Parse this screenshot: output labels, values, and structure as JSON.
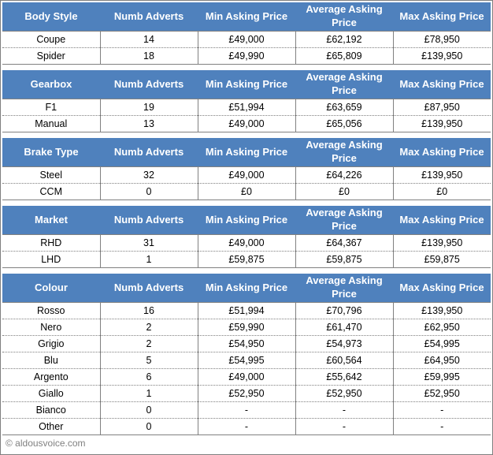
{
  "columns": [
    "Numb Adverts",
    "Min Asking Price",
    "Average Asking Price",
    "Max Asking Price"
  ],
  "colors": {
    "header_background": "#4f81bd",
    "header_text": "#ffffff",
    "border_gray": "#808080",
    "footer_text": "#808080"
  },
  "footer": {
    "text": "© aldousvoice.com"
  },
  "tables": [
    {
      "headers": [
        "Body Style",
        "Numb Adverts",
        "Min Asking Price",
        "Average Asking Price",
        "Max Asking Price"
      ],
      "rows": [
        [
          "Coupe",
          "14",
          "£49,000",
          "£62,192",
          "£78,950"
        ],
        [
          "Spider",
          "18",
          "£49,990",
          "£65,809",
          "£139,950"
        ]
      ]
    },
    {
      "headers": [
        "Gearbox",
        "Numb Adverts",
        "Min Asking Price",
        "Average Asking Price",
        "Max Asking Price"
      ],
      "rows": [
        [
          "F1",
          "19",
          "£51,994",
          "£63,659",
          "£87,950"
        ],
        [
          "Manual",
          "13",
          "£49,000",
          "£65,056",
          "£139,950"
        ]
      ]
    },
    {
      "headers": [
        "Brake Type",
        "Numb Adverts",
        "Min Asking Price",
        "Average Asking Price",
        "Max Asking Price"
      ],
      "rows": [
        [
          "Steel",
          "32",
          "£49,000",
          "£64,226",
          "£139,950"
        ],
        [
          "CCM",
          "0",
          "£0",
          "£0",
          "£0"
        ]
      ]
    },
    {
      "headers": [
        "Market",
        "Numb Adverts",
        "Min Asking Price",
        "Average Asking Price",
        "Max Asking Price"
      ],
      "rows": [
        [
          "RHD",
          "31",
          "£49,000",
          "£64,367",
          "£139,950"
        ],
        [
          "LHD",
          "1",
          "£59,875",
          "£59,875",
          "£59,875"
        ]
      ]
    },
    {
      "headers": [
        "Colour",
        "Numb Adverts",
        "Min Asking Price",
        "Average Asking Price",
        "Max Asking Price"
      ],
      "rows": [
        [
          "Rosso",
          "16",
          "£51,994",
          "£70,796",
          "£139,950"
        ],
        [
          "Nero",
          "2",
          "£59,990",
          "£61,470",
          "£62,950"
        ],
        [
          "Grigio",
          "2",
          "£54,950",
          "£54,973",
          "£54,995"
        ],
        [
          "Blu",
          "5",
          "£54,995",
          "£60,564",
          "£64,950"
        ],
        [
          "Argento",
          "6",
          "£49,000",
          "£55,642",
          "£59,995"
        ],
        [
          "Giallo",
          "1",
          "£52,950",
          "£52,950",
          "£52,950"
        ],
        [
          "Bianco",
          "0",
          "-",
          "-",
          "-"
        ],
        [
          "Other",
          "0",
          "-",
          "-",
          "-"
        ]
      ]
    }
  ],
  "chart_data": [
    {
      "type": "table",
      "title": "Body Style",
      "columns": [
        "Body Style",
        "Numb Adverts",
        "Min Asking Price",
        "Average Asking Price",
        "Max Asking Price"
      ],
      "rows": [
        [
          "Coupe",
          14,
          "£49,000",
          "£62,192",
          "£78,950"
        ],
        [
          "Spider",
          18,
          "£49,990",
          "£65,809",
          "£139,950"
        ]
      ]
    },
    {
      "type": "table",
      "title": "Gearbox",
      "columns": [
        "Gearbox",
        "Numb Adverts",
        "Min Asking Price",
        "Average Asking Price",
        "Max Asking Price"
      ],
      "rows": [
        [
          "F1",
          19,
          "£51,994",
          "£63,659",
          "£87,950"
        ],
        [
          "Manual",
          13,
          "£49,000",
          "£65,056",
          "£139,950"
        ]
      ]
    },
    {
      "type": "table",
      "title": "Brake Type",
      "columns": [
        "Brake Type",
        "Numb Adverts",
        "Min Asking Price",
        "Average Asking Price",
        "Max Asking Price"
      ],
      "rows": [
        [
          "Steel",
          32,
          "£49,000",
          "£64,226",
          "£139,950"
        ],
        [
          "CCM",
          0,
          "£0",
          "£0",
          "£0"
        ]
      ]
    },
    {
      "type": "table",
      "title": "Market",
      "columns": [
        "Market",
        "Numb Adverts",
        "Min Asking Price",
        "Average Asking Price",
        "Max Asking Price"
      ],
      "rows": [
        [
          "RHD",
          31,
          "£49,000",
          "£64,367",
          "£139,950"
        ],
        [
          "LHD",
          1,
          "£59,875",
          "£59,875",
          "£59,875"
        ]
      ]
    },
    {
      "type": "table",
      "title": "Colour",
      "columns": [
        "Colour",
        "Numb Adverts",
        "Min Asking Price",
        "Average Asking Price",
        "Max Asking Price"
      ],
      "rows": [
        [
          "Rosso",
          16,
          "£51,994",
          "£70,796",
          "£139,950"
        ],
        [
          "Nero",
          2,
          "£59,990",
          "£61,470",
          "£62,950"
        ],
        [
          "Grigio",
          2,
          "£54,950",
          "£54,973",
          "£54,995"
        ],
        [
          "Blu",
          5,
          "£54,995",
          "£60,564",
          "£64,950"
        ],
        [
          "Argento",
          6,
          "£49,000",
          "£55,642",
          "£59,995"
        ],
        [
          "Giallo",
          1,
          "£52,950",
          "£52,950",
          "£52,950"
        ],
        [
          "Bianco",
          0,
          "-",
          "-",
          "-"
        ],
        [
          "Other",
          0,
          "-",
          "-",
          "-"
        ]
      ]
    }
  ]
}
